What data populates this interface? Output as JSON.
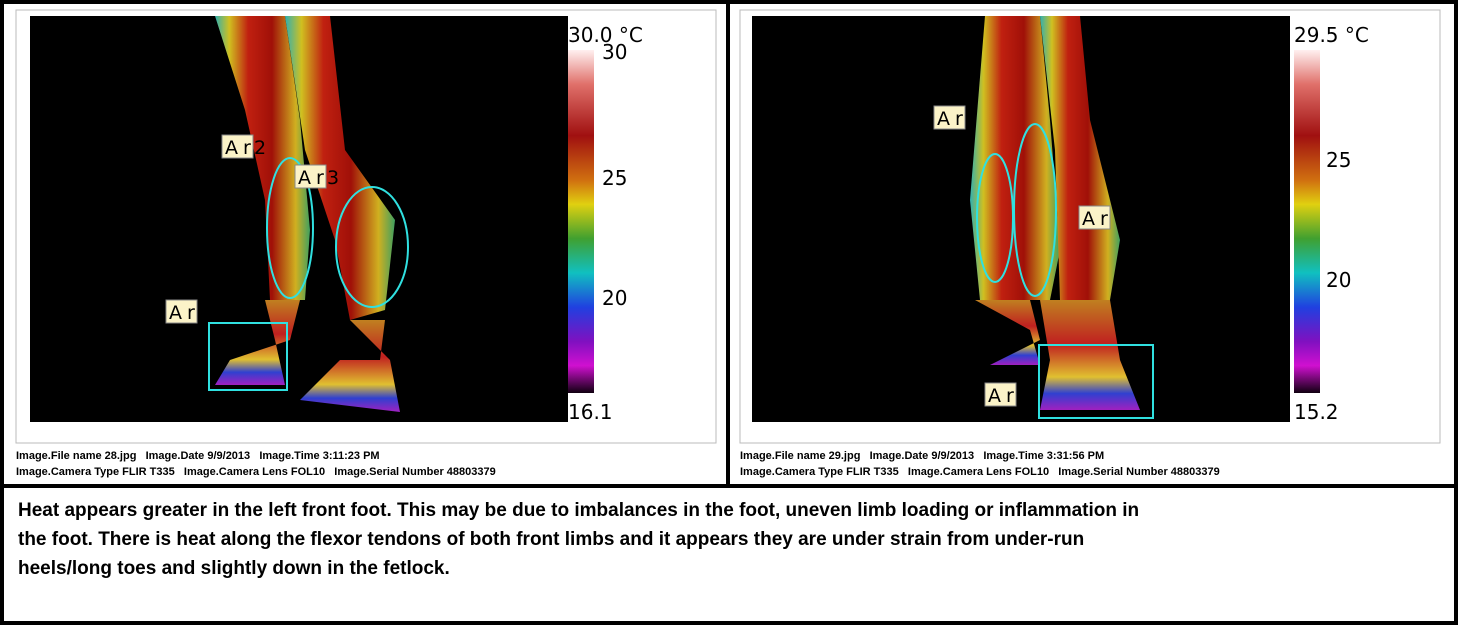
{
  "panels": [
    {
      "scale": {
        "max_label": "30.0 °C",
        "ticks": [
          "30",
          "25",
          "20"
        ],
        "min_label": "16.1"
      },
      "areas": [
        {
          "label": "Ar",
          "suffix": "2"
        },
        {
          "label": "Ar",
          "suffix": "3"
        },
        {
          "label": "Ar"
        }
      ],
      "info": [
        "Image.File name 28.jpg   Image.Date 9/9/2013   Image.Time 3:11:23 PM",
        "Image.Camera Type FLIR T335   Image.Camera Lens FOL10   Image.Serial Number 48803379"
      ]
    },
    {
      "scale": {
        "max_label": "29.5 °C",
        "ticks": [
          "25",
          "20"
        ],
        "min_label": "15.2"
      },
      "areas": [
        {
          "label": "Ar"
        },
        {
          "label": "Ar"
        },
        {
          "label": "Ar"
        }
      ],
      "info": [
        "Image.File name 29.jpg   Image.Date 9/9/2013   Image.Time 3:31:56 PM",
        "Image.Camera Type FLIR T335   Image.Camera Lens FOL10   Image.Serial Number 48803379"
      ]
    }
  ],
  "caption": [
    "Heat appears greater in the left front foot. This may be due to imbalances in the foot, uneven limb loading or inflammation in",
    "the foot. There is heat along the flexor tendons of both front limbs and it appears they are under strain from under-run",
    "heels/long toes and slightly down in the fetlock."
  ]
}
